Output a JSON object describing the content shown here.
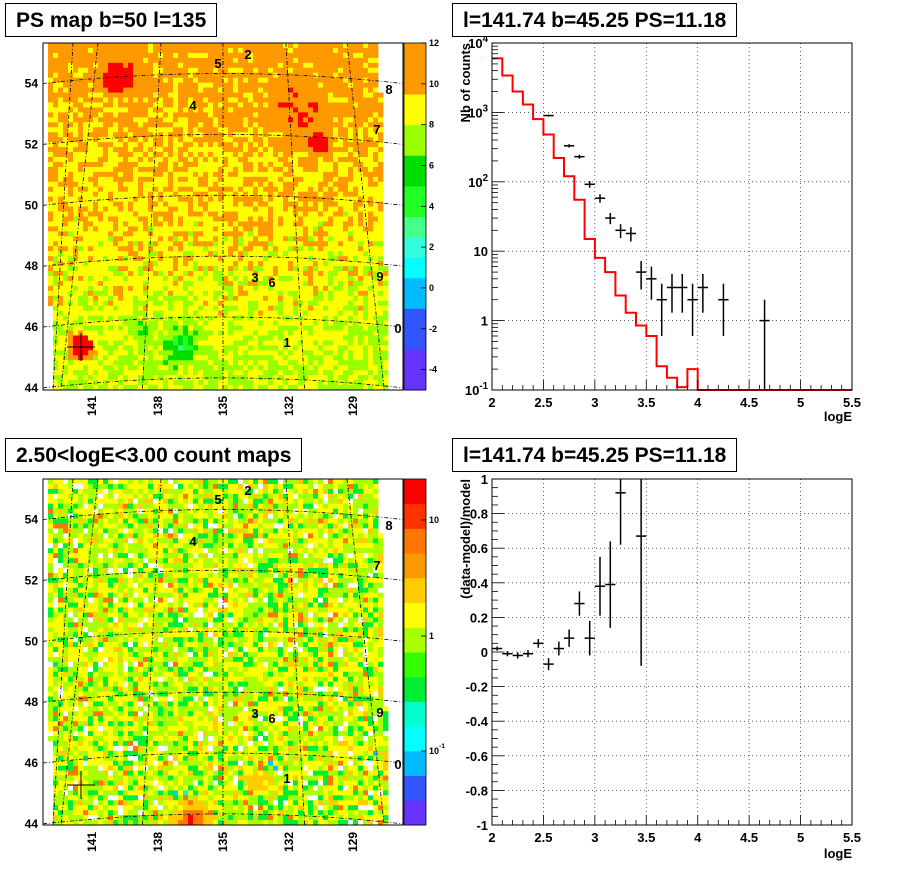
{
  "panels": {
    "ps_map": {
      "title": "PS map b=50 l=135",
      "lat_ticks": [
        "44",
        "46",
        "48",
        "50",
        "52",
        "54"
      ],
      "lon_ticks": [
        "141",
        "138",
        "135",
        "132",
        "129"
      ],
      "colorbar_ticks": [
        "12",
        "10",
        "8",
        "6",
        "4",
        "2",
        "0",
        "-2",
        "-4"
      ],
      "colors": {
        "background": "#00ffff",
        "hot": "#ff0000",
        "cold": "#6633ff"
      }
    },
    "count_map": {
      "title": "2.50<logE<3.00 count maps",
      "lat_ticks": [
        "44",
        "46",
        "48",
        "50",
        "52",
        "54"
      ],
      "lon_ticks": [
        "141",
        "138",
        "135",
        "132",
        "129"
      ],
      "colorbar_ticks": [
        "10",
        "1",
        "10^-1"
      ]
    },
    "spectrum": {
      "title": "l=141.74 b=45.25 PS=11.18"
    },
    "residual": {
      "title": "l=141.74 b=45.25 PS=11.18"
    }
  },
  "source_labels": [
    "2",
    "5",
    "8",
    "4",
    "7",
    "3",
    "6",
    "9",
    "0",
    "1"
  ],
  "chart_data": [
    {
      "type": "scatter",
      "name": "spectrum",
      "title": "l=141.74 b=45.25 PS=11.18",
      "xlabel": "logE",
      "ylabel": "Nb of counts",
      "xlim": [
        2,
        5.5
      ],
      "ylim": [
        0.1,
        10000
      ],
      "yscale": "log",
      "grid": true,
      "x_ticks": [
        "2",
        "2.5",
        "3",
        "3.5",
        "4",
        "4.5",
        "5",
        "5.5"
      ],
      "y_ticks": [
        "10^-1",
        "1",
        "10",
        "10^2",
        "10^3",
        "10^4"
      ],
      "data_points": [
        {
          "x": 2.55,
          "y": 900,
          "err_lo": 30,
          "err_hi": 30
        },
        {
          "x": 2.75,
          "y": 330,
          "err_lo": 18,
          "err_hi": 18
        },
        {
          "x": 2.85,
          "y": 230,
          "err_lo": 15,
          "err_hi": 15
        },
        {
          "x": 2.95,
          "y": 92,
          "err_lo": 10,
          "err_hi": 10
        },
        {
          "x": 3.05,
          "y": 58,
          "err_lo": 8,
          "err_hi": 8
        },
        {
          "x": 3.15,
          "y": 30,
          "err_lo": 5.5,
          "err_hi": 5.5
        },
        {
          "x": 3.25,
          "y": 20,
          "err_lo": 4.5,
          "err_hi": 4.5
        },
        {
          "x": 3.35,
          "y": 18,
          "err_lo": 4.2,
          "err_hi": 4.2
        },
        {
          "x": 3.45,
          "y": 5,
          "err_lo": 2.2,
          "err_hi": 2.2
        },
        {
          "x": 3.55,
          "y": 4,
          "err_lo": 2,
          "err_hi": 2
        },
        {
          "x": 3.65,
          "y": 2,
          "err_lo": 1.4,
          "err_hi": 1.4
        },
        {
          "x": 3.75,
          "y": 3,
          "err_lo": 1.7,
          "err_hi": 1.7
        },
        {
          "x": 3.85,
          "y": 3,
          "err_lo": 1.7,
          "err_hi": 1.7
        },
        {
          "x": 3.95,
          "y": 2,
          "err_lo": 1.4,
          "err_hi": 1.4
        },
        {
          "x": 4.05,
          "y": 3,
          "err_lo": 1.7,
          "err_hi": 1.7
        },
        {
          "x": 4.25,
          "y": 2,
          "err_lo": 1.4,
          "err_hi": 1.4
        },
        {
          "x": 4.65,
          "y": 1,
          "err_lo": 0.95,
          "err_hi": 1
        }
      ],
      "model_step": {
        "color": "#ff0000",
        "bins": [
          [
            2.0,
            6000
          ],
          [
            2.1,
            3400
          ],
          [
            2.2,
            2000
          ],
          [
            2.3,
            1300
          ],
          [
            2.4,
            800
          ],
          [
            2.5,
            480
          ],
          [
            2.6,
            220
          ],
          [
            2.7,
            120
          ],
          [
            2.8,
            55
          ],
          [
            2.9,
            15
          ],
          [
            3.0,
            8
          ],
          [
            3.1,
            5
          ],
          [
            3.2,
            2.3
          ],
          [
            3.3,
            1.3
          ],
          [
            3.4,
            0.85
          ],
          [
            3.5,
            0.6
          ],
          [
            3.6,
            0.22
          ],
          [
            3.7,
            0.15
          ],
          [
            3.8,
            0.11
          ],
          [
            3.9,
            0.2
          ],
          [
            4.0,
            0.1
          ],
          [
            4.1,
            0.1
          ]
        ]
      }
    },
    {
      "type": "scatter",
      "name": "residual",
      "title": "l=141.74 b=45.25 PS=11.18",
      "xlabel": "logE",
      "ylabel": "(data-model)/model",
      "xlim": [
        2,
        5.5
      ],
      "ylim": [
        -1,
        1
      ],
      "grid": true,
      "x_ticks": [
        "2",
        "2.5",
        "3",
        "3.5",
        "4",
        "4.5",
        "5",
        "5.5"
      ],
      "y_ticks": [
        "-1",
        "-0.8",
        "-0.6",
        "-0.4",
        "-0.2",
        "0",
        "0.2",
        "0.4",
        "0.6",
        "0.8",
        "1"
      ],
      "data_points": [
        {
          "x": 2.05,
          "y": 0.02,
          "err": 0.012
        },
        {
          "x": 2.15,
          "y": -0.01,
          "err": 0.015
        },
        {
          "x": 2.25,
          "y": -0.02,
          "err": 0.018
        },
        {
          "x": 2.35,
          "y": -0.01,
          "err": 0.02
        },
        {
          "x": 2.45,
          "y": 0.05,
          "err": 0.025
        },
        {
          "x": 2.55,
          "y": -0.07,
          "err": 0.035
        },
        {
          "x": 2.65,
          "y": 0.02,
          "err": 0.04
        },
        {
          "x": 2.75,
          "y": 0.08,
          "err": 0.05
        },
        {
          "x": 2.85,
          "y": 0.28,
          "err": 0.07
        },
        {
          "x": 2.95,
          "y": 0.08,
          "err": 0.1
        },
        {
          "x": 3.05,
          "y": 0.38,
          "err": 0.17
        },
        {
          "x": 3.15,
          "y": 0.39,
          "err": 0.25
        },
        {
          "x": 3.25,
          "y": 0.92,
          "err": 0.3
        },
        {
          "x": 3.45,
          "y": 0.67,
          "err": 0.75
        }
      ]
    }
  ]
}
